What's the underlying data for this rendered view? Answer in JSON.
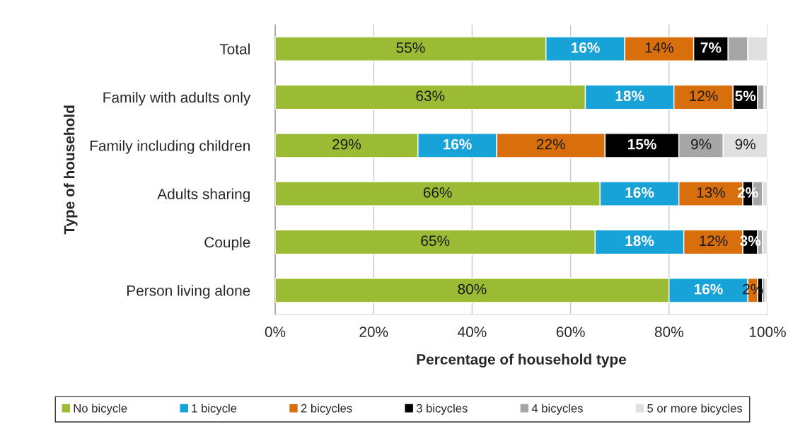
{
  "chart_data": {
    "type": "bar",
    "orientation": "horizontal",
    "stacked": true,
    "xlabel": "Percentage of household type",
    "ylabel": "Type of household",
    "categories": [
      "Total",
      "Family with adults only",
      "Family including children",
      "Adults sharing",
      "Couple",
      "Person living alone"
    ],
    "series": [
      {
        "name": "No bicycle",
        "color": "#9bbb34",
        "values": [
          55,
          63,
          29,
          66,
          65,
          80
        ],
        "value_labels": [
          "55%",
          "63%",
          "29%",
          "66%",
          "65%",
          "80%"
        ]
      },
      {
        "name": "1 bicycle",
        "color": "#17a2d8",
        "values": [
          16,
          18,
          16,
          16,
          18,
          16
        ],
        "value_labels": [
          "16%",
          "18%",
          "16%",
          "16%",
          "18%",
          "16%"
        ]
      },
      {
        "name": "2 bicycles",
        "color": "#d86f0c",
        "values": [
          14,
          12,
          22,
          13,
          12,
          2
        ],
        "value_labels": [
          "14%",
          "12%",
          "22%",
          "13%",
          "12%",
          "2%"
        ]
      },
      {
        "name": "3 bicycles",
        "color": "#000000",
        "values": [
          7,
          5,
          15,
          2,
          3,
          1
        ],
        "value_labels": [
          "7%",
          "5%",
          "15%",
          "2%",
          "3%",
          null
        ]
      },
      {
        "name": "4 bicycles",
        "color": "#a6a6a6",
        "values": [
          4,
          1.3,
          9,
          2,
          1,
          0.5
        ],
        "value_labels": [
          null,
          null,
          "9%",
          null,
          null,
          null
        ]
      },
      {
        "name": "5 or more bicycles",
        "color": "#e0e0e0",
        "values": [
          4,
          0.7,
          9,
          1,
          1,
          0.5
        ],
        "value_labels": [
          null,
          null,
          "9%",
          null,
          null,
          null
        ]
      }
    ],
    "xlim": [
      0,
      100
    ],
    "xticks": [
      {
        "value": 0,
        "label": "0%"
      },
      {
        "value": 20,
        "label": "20%"
      },
      {
        "value": 40,
        "label": "40%"
      },
      {
        "value": 60,
        "label": "60%"
      },
      {
        "value": 80,
        "label": "80%"
      },
      {
        "value": 100,
        "label": "100%"
      }
    ],
    "grid": "x",
    "legend": "bottom"
  }
}
